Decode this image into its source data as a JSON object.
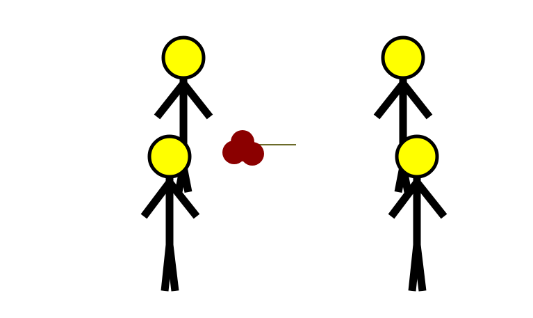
{
  "scene": {
    "background": "#ffffff",
    "figure_head_color": "#ffff00",
    "figure_line_color": "#000000",
    "projectile_color": "#8b0000",
    "trail_color": "#6b6b2a"
  },
  "figures": [
    {
      "name": "stick-figure-left-back"
    },
    {
      "name": "stick-figure-left-front"
    },
    {
      "name": "stick-figure-right-back"
    },
    {
      "name": "stick-figure-right-front"
    }
  ],
  "projectile": {
    "name": "red-blob-projectile"
  }
}
